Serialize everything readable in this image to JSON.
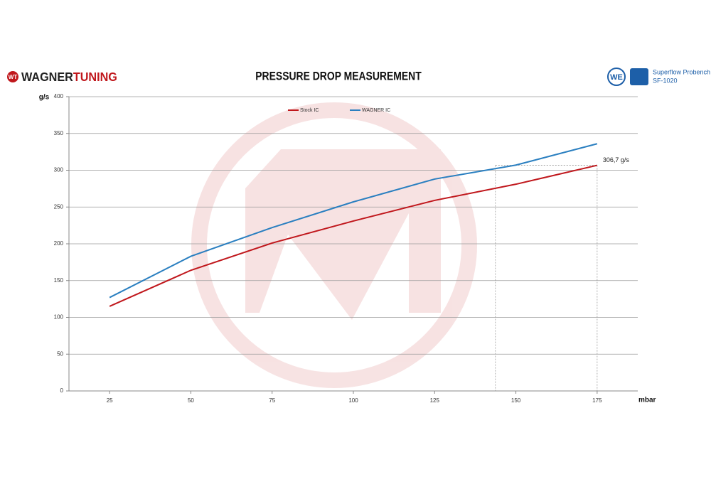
{
  "logo": {
    "left": [
      "WAGNER",
      "TUNING"
    ],
    "right": [
      "Superflow Probench",
      "SF-1020"
    ]
  },
  "chart_data": {
    "type": "line",
    "title": "PRESSURE DROP MEASUREMENT",
    "y_label": "g/s",
    "x_label": "mbar",
    "x": [
      25,
      50,
      75,
      100,
      125,
      150,
      175
    ],
    "series": [
      {
        "name": "Stock IC",
        "color": "#c0171c",
        "values": [
          115,
          164,
          201,
          231,
          259,
          281,
          306.7
        ]
      },
      {
        "name": "WAGNER IC",
        "color": "#2a7fc0",
        "values": [
          127,
          183,
          222,
          257,
          288,
          307,
          336
        ]
      }
    ],
    "xlim": [
      12.5,
      187.5
    ],
    "xticks": [
      25,
      50,
      75,
      100,
      125,
      150,
      175
    ],
    "ylim": [
      0,
      400
    ],
    "yticks": [
      0,
      50,
      100,
      150,
      200,
      250,
      300,
      350,
      400
    ],
    "grid": true,
    "annotation": {
      "text": "306,7 g/s",
      "x": 175,
      "y": 306.7,
      "match_x": 143.7
    }
  }
}
